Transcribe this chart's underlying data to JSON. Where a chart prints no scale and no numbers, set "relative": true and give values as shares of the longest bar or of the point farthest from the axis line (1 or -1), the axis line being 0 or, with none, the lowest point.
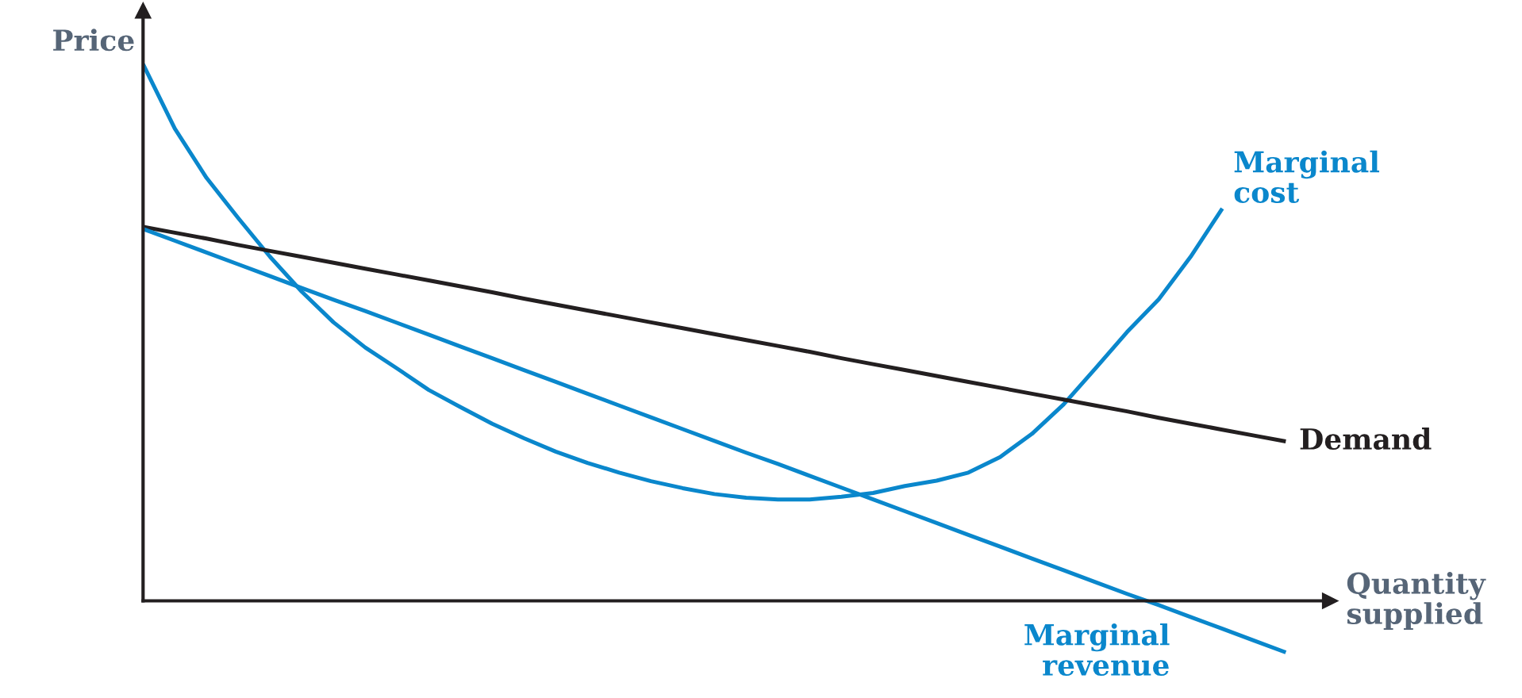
{
  "chart_data": {
    "type": "line",
    "relative": true,
    "xlabel": "Quantity\nsupplied",
    "ylabel": "Price",
    "legend": false,
    "marker": "none",
    "line_style": "solid",
    "categories": [
      null,
      null,
      null,
      null,
      null,
      null,
      null,
      null,
      null,
      null,
      null,
      null,
      null,
      null,
      null,
      null,
      null,
      null,
      null,
      null,
      null,
      null,
      null,
      null,
      null,
      null,
      null,
      null,
      null,
      null,
      null,
      null,
      null,
      null,
      null,
      null,
      null
    ],
    "series": [
      {
        "name": "Marginal\ncost",
        "color": "#0a87cc",
        "values": [
          1.0,
          0.88,
          0.788,
          0.713,
          0.641,
          0.576,
          0.519,
          0.472,
          0.433,
          0.393,
          0.361,
          0.33,
          0.303,
          0.278,
          0.257,
          0.239,
          0.223,
          0.21,
          0.199,
          0.192,
          0.189,
          0.189,
          0.194,
          0.201,
          0.214,
          0.224,
          0.239,
          0.268,
          0.311,
          0.366,
          0.433,
          0.501,
          0.562,
          0.641,
          0.731,
          null,
          null
        ]
      },
      {
        "name": "Demand",
        "color": "#231f20",
        "values": [
          0.697,
          0.686,
          0.675,
          0.663,
          0.652,
          0.641,
          0.63,
          0.619,
          0.608,
          0.597,
          0.586,
          0.575,
          0.563,
          0.552,
          0.541,
          0.53,
          0.519,
          0.508,
          0.497,
          0.486,
          0.475,
          0.464,
          0.452,
          0.441,
          0.43,
          0.419,
          0.408,
          0.397,
          0.386,
          0.375,
          0.364,
          0.353,
          0.341,
          0.33,
          0.319,
          0.308,
          0.297
        ]
      },
      {
        "name": "Marginal\nrevenue",
        "color": "#0a87cc",
        "values": [
          0.693,
          0.671,
          0.649,
          0.627,
          0.605,
          0.583,
          0.561,
          0.54,
          0.518,
          0.496,
          0.474,
          0.452,
          0.43,
          0.408,
          0.386,
          0.364,
          0.342,
          0.32,
          0.298,
          0.276,
          0.255,
          0.233,
          0.211,
          0.189,
          0.167,
          0.145,
          0.123,
          0.101,
          0.079,
          0.057,
          0.035,
          0.013,
          -0.008,
          -0.03,
          -0.052,
          -0.074,
          -0.096
        ]
      }
    ]
  }
}
